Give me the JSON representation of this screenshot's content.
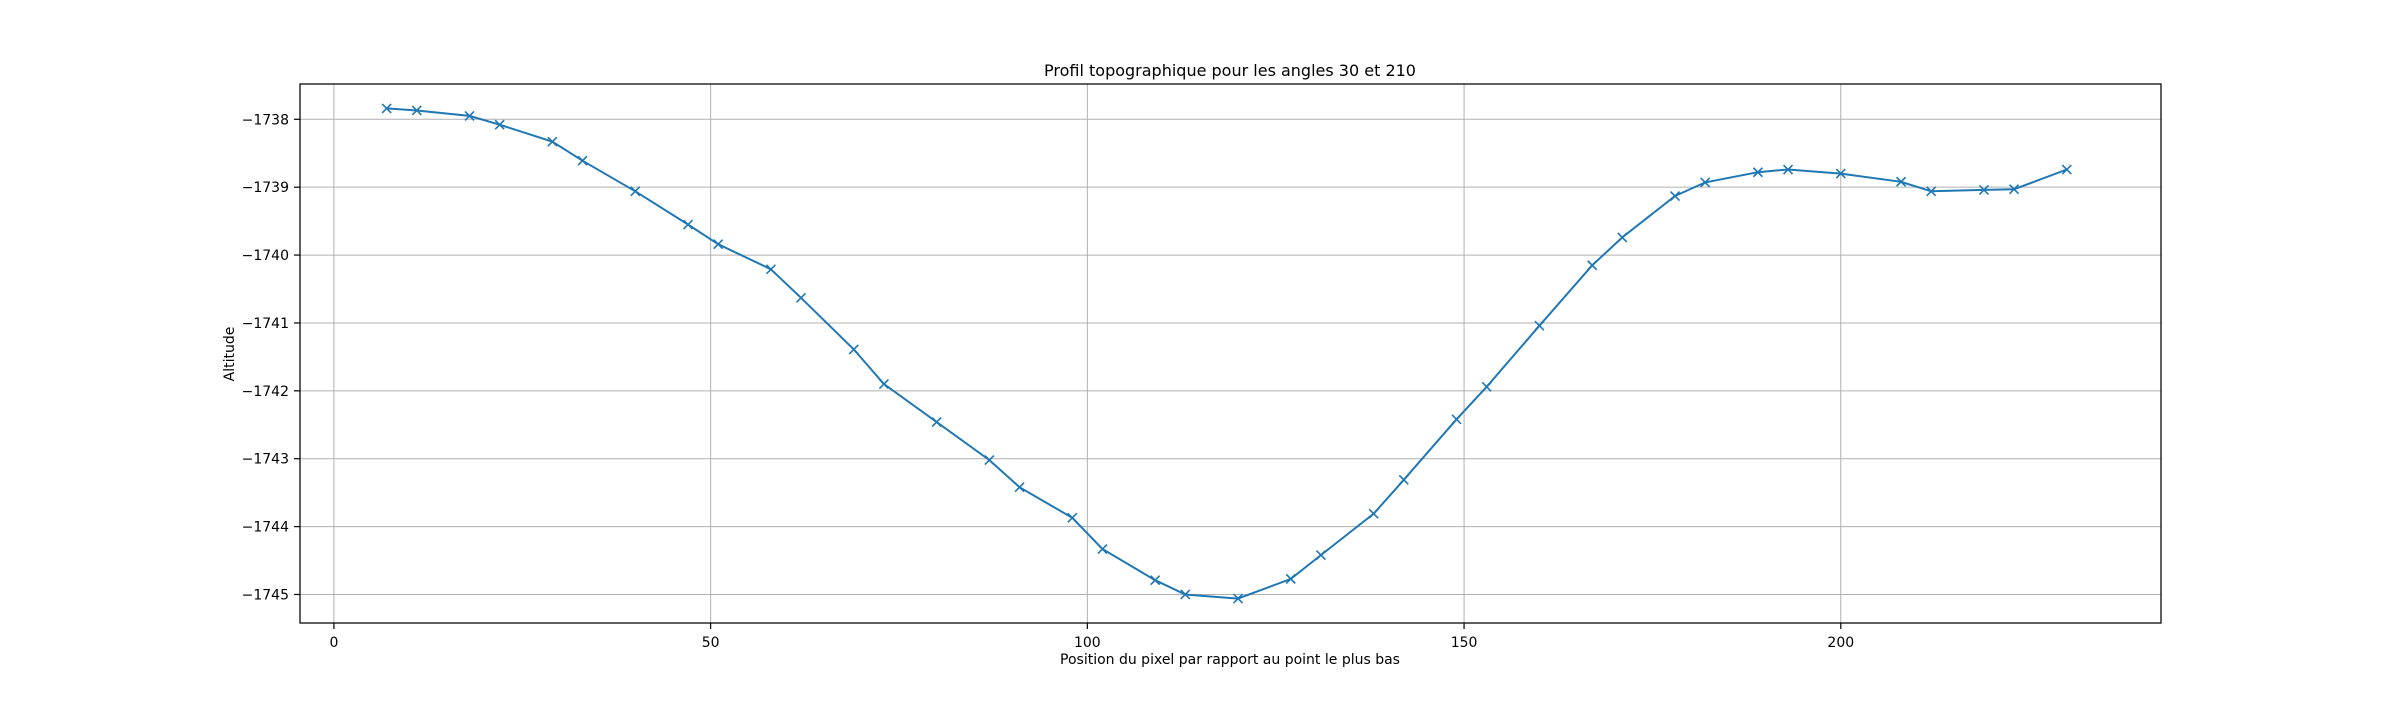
{
  "chart_data": {
    "type": "line",
    "title": "Profil topographique pour les angles 30 et 210",
    "xlabel": "Position du pixel par rapport au point le plus bas",
    "ylabel": "Altitude",
    "xlim": [
      -4.5,
      242.5
    ],
    "ylim": [
      -1745.42,
      -1737.48
    ],
    "grid": true,
    "marker": "x",
    "line_color": "#1f77b4",
    "x_ticks": [
      0,
      50,
      100,
      150,
      200
    ],
    "x_tick_labels": [
      "0",
      "50",
      "100",
      "150",
      "200"
    ],
    "y_ticks": [
      -1738,
      -1739,
      -1740,
      -1741,
      -1742,
      -1743,
      -1744,
      -1745
    ],
    "y_tick_labels": [
      "−1738",
      "−1739",
      "−1740",
      "−1741",
      "−1742",
      "−1743",
      "−1744",
      "−1745"
    ],
    "series": [
      {
        "x": [
          7,
          11,
          18,
          22,
          29,
          33,
          40,
          47,
          51,
          58,
          62,
          69,
          73,
          80,
          87,
          91,
          98,
          102,
          109,
          113,
          120,
          127,
          131,
          138,
          142,
          149,
          153,
          160,
          167,
          171,
          178,
          182,
          189,
          193,
          200,
          208,
          212,
          219,
          223,
          230
        ],
        "values": [
          -1737.84,
          -1737.87,
          -1737.95,
          -1738.08,
          -1738.33,
          -1738.61,
          -1739.06,
          -1739.55,
          -1739.84,
          -1740.21,
          -1740.63,
          -1741.39,
          -1741.9,
          -1742.46,
          -1743.02,
          -1743.42,
          -1743.87,
          -1744.33,
          -1744.79,
          -1745.0,
          -1745.06,
          -1744.77,
          -1744.42,
          -1743.81,
          -1743.31,
          -1742.42,
          -1741.94,
          -1741.04,
          -1740.15,
          -1739.74,
          -1739.13,
          -1738.93,
          -1738.78,
          -1738.74,
          -1738.8,
          -1738.92,
          -1739.06,
          -1739.04,
          -1739.03,
          -1738.74
        ]
      }
    ]
  }
}
